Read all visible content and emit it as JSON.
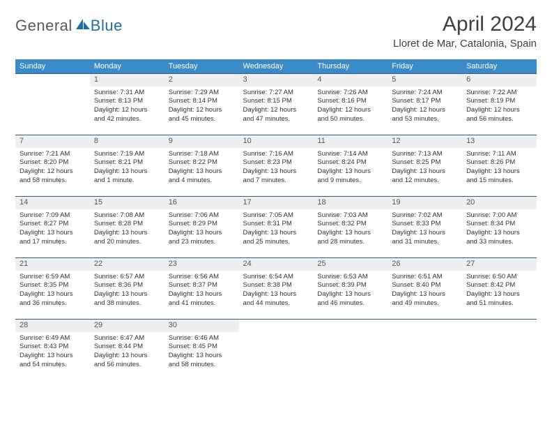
{
  "logo": {
    "general": "General",
    "blue": "Blue"
  },
  "title": "April 2024",
  "location": "Lloret de Mar, Catalonia, Spain",
  "colors": {
    "header_bg": "#3b8bc9",
    "header_text": "#ffffff",
    "daynum_bg": "#efefef",
    "row_border": "#2e5d8a",
    "logo_gray": "#595959",
    "logo_blue": "#1f6ea8",
    "title_color": "#404040",
    "body_text": "#333333",
    "page_bg": "#ffffff"
  },
  "weekdays": [
    "Sunday",
    "Monday",
    "Tuesday",
    "Wednesday",
    "Thursday",
    "Friday",
    "Saturday"
  ],
  "weeks": [
    [
      null,
      {
        "n": "1",
        "sunrise": "Sunrise: 7:31 AM",
        "sunset": "Sunset: 8:13 PM",
        "day1": "Daylight: 12 hours",
        "day2": "and 42 minutes."
      },
      {
        "n": "2",
        "sunrise": "Sunrise: 7:29 AM",
        "sunset": "Sunset: 8:14 PM",
        "day1": "Daylight: 12 hours",
        "day2": "and 45 minutes."
      },
      {
        "n": "3",
        "sunrise": "Sunrise: 7:27 AM",
        "sunset": "Sunset: 8:15 PM",
        "day1": "Daylight: 12 hours",
        "day2": "and 47 minutes."
      },
      {
        "n": "4",
        "sunrise": "Sunrise: 7:26 AM",
        "sunset": "Sunset: 8:16 PM",
        "day1": "Daylight: 12 hours",
        "day2": "and 50 minutes."
      },
      {
        "n": "5",
        "sunrise": "Sunrise: 7:24 AM",
        "sunset": "Sunset: 8:17 PM",
        "day1": "Daylight: 12 hours",
        "day2": "and 53 minutes."
      },
      {
        "n": "6",
        "sunrise": "Sunrise: 7:22 AM",
        "sunset": "Sunset: 8:19 PM",
        "day1": "Daylight: 12 hours",
        "day2": "and 56 minutes."
      }
    ],
    [
      {
        "n": "7",
        "sunrise": "Sunrise: 7:21 AM",
        "sunset": "Sunset: 8:20 PM",
        "day1": "Daylight: 12 hours",
        "day2": "and 58 minutes."
      },
      {
        "n": "8",
        "sunrise": "Sunrise: 7:19 AM",
        "sunset": "Sunset: 8:21 PM",
        "day1": "Daylight: 13 hours",
        "day2": "and 1 minute."
      },
      {
        "n": "9",
        "sunrise": "Sunrise: 7:18 AM",
        "sunset": "Sunset: 8:22 PM",
        "day1": "Daylight: 13 hours",
        "day2": "and 4 minutes."
      },
      {
        "n": "10",
        "sunrise": "Sunrise: 7:16 AM",
        "sunset": "Sunset: 8:23 PM",
        "day1": "Daylight: 13 hours",
        "day2": "and 7 minutes."
      },
      {
        "n": "11",
        "sunrise": "Sunrise: 7:14 AM",
        "sunset": "Sunset: 8:24 PM",
        "day1": "Daylight: 13 hours",
        "day2": "and 9 minutes."
      },
      {
        "n": "12",
        "sunrise": "Sunrise: 7:13 AM",
        "sunset": "Sunset: 8:25 PM",
        "day1": "Daylight: 13 hours",
        "day2": "and 12 minutes."
      },
      {
        "n": "13",
        "sunrise": "Sunrise: 7:11 AM",
        "sunset": "Sunset: 8:26 PM",
        "day1": "Daylight: 13 hours",
        "day2": "and 15 minutes."
      }
    ],
    [
      {
        "n": "14",
        "sunrise": "Sunrise: 7:09 AM",
        "sunset": "Sunset: 8:27 PM",
        "day1": "Daylight: 13 hours",
        "day2": "and 17 minutes."
      },
      {
        "n": "15",
        "sunrise": "Sunrise: 7:08 AM",
        "sunset": "Sunset: 8:28 PM",
        "day1": "Daylight: 13 hours",
        "day2": "and 20 minutes."
      },
      {
        "n": "16",
        "sunrise": "Sunrise: 7:06 AM",
        "sunset": "Sunset: 8:29 PM",
        "day1": "Daylight: 13 hours",
        "day2": "and 23 minutes."
      },
      {
        "n": "17",
        "sunrise": "Sunrise: 7:05 AM",
        "sunset": "Sunset: 8:31 PM",
        "day1": "Daylight: 13 hours",
        "day2": "and 25 minutes."
      },
      {
        "n": "18",
        "sunrise": "Sunrise: 7:03 AM",
        "sunset": "Sunset: 8:32 PM",
        "day1": "Daylight: 13 hours",
        "day2": "and 28 minutes."
      },
      {
        "n": "19",
        "sunrise": "Sunrise: 7:02 AM",
        "sunset": "Sunset: 8:33 PM",
        "day1": "Daylight: 13 hours",
        "day2": "and 31 minutes."
      },
      {
        "n": "20",
        "sunrise": "Sunrise: 7:00 AM",
        "sunset": "Sunset: 8:34 PM",
        "day1": "Daylight: 13 hours",
        "day2": "and 33 minutes."
      }
    ],
    [
      {
        "n": "21",
        "sunrise": "Sunrise: 6:59 AM",
        "sunset": "Sunset: 8:35 PM",
        "day1": "Daylight: 13 hours",
        "day2": "and 36 minutes."
      },
      {
        "n": "22",
        "sunrise": "Sunrise: 6:57 AM",
        "sunset": "Sunset: 8:36 PM",
        "day1": "Daylight: 13 hours",
        "day2": "and 38 minutes."
      },
      {
        "n": "23",
        "sunrise": "Sunrise: 6:56 AM",
        "sunset": "Sunset: 8:37 PM",
        "day1": "Daylight: 13 hours",
        "day2": "and 41 minutes."
      },
      {
        "n": "24",
        "sunrise": "Sunrise: 6:54 AM",
        "sunset": "Sunset: 8:38 PM",
        "day1": "Daylight: 13 hours",
        "day2": "and 44 minutes."
      },
      {
        "n": "25",
        "sunrise": "Sunrise: 6:53 AM",
        "sunset": "Sunset: 8:39 PM",
        "day1": "Daylight: 13 hours",
        "day2": "and 46 minutes."
      },
      {
        "n": "26",
        "sunrise": "Sunrise: 6:51 AM",
        "sunset": "Sunset: 8:40 PM",
        "day1": "Daylight: 13 hours",
        "day2": "and 49 minutes."
      },
      {
        "n": "27",
        "sunrise": "Sunrise: 6:50 AM",
        "sunset": "Sunset: 8:42 PM",
        "day1": "Daylight: 13 hours",
        "day2": "and 51 minutes."
      }
    ],
    [
      {
        "n": "28",
        "sunrise": "Sunrise: 6:49 AM",
        "sunset": "Sunset: 8:43 PM",
        "day1": "Daylight: 13 hours",
        "day2": "and 54 minutes."
      },
      {
        "n": "29",
        "sunrise": "Sunrise: 6:47 AM",
        "sunset": "Sunset: 8:44 PM",
        "day1": "Daylight: 13 hours",
        "day2": "and 56 minutes."
      },
      {
        "n": "30",
        "sunrise": "Sunrise: 6:46 AM",
        "sunset": "Sunset: 8:45 PM",
        "day1": "Daylight: 13 hours",
        "day2": "and 58 minutes."
      },
      null,
      null,
      null,
      null
    ]
  ]
}
